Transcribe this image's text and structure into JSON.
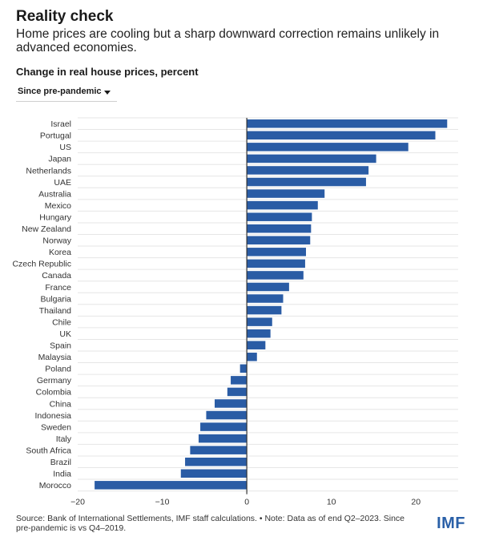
{
  "header": {
    "title": "Reality check",
    "subtitle": "Home prices are cooling but a sharp downward correction remains unlikely in advanced economies."
  },
  "controls": {
    "dropdown_value": "Since pre-pandemic"
  },
  "footer": {
    "source": "Source: Bank of International Settlements, IMF staff calculations. • Note: Data as of end Q2–2023. Since pre-pandemic is vs Q4–2019.",
    "logo": "IMF"
  },
  "colors": {
    "bar": "#2a5ca5",
    "zero_line": "#333333",
    "grid": "#e6e6e6",
    "logo": "#2a60a8"
  },
  "chart_data": {
    "type": "bar",
    "orientation": "horizontal",
    "title": "",
    "xlabel": "",
    "ylabel": "Change in real house prices, percent",
    "xlim": [
      -20,
      25
    ],
    "xticks": [
      -20,
      -10,
      0,
      10,
      20
    ],
    "xtick_labels": [
      "−20",
      "−10",
      "0",
      "10",
      "20"
    ],
    "grid": true,
    "categories": [
      "Israel",
      "Portugal",
      "US",
      "Japan",
      "Netherlands",
      "UAE",
      "Australia",
      "Mexico",
      "Hungary",
      "New Zealand",
      "Norway",
      "Korea",
      "Czech Republic",
      "Canada",
      "France",
      "Bulgaria",
      "Thailand",
      "Chile",
      "UK",
      "Spain",
      "Malaysia",
      "Poland",
      "Germany",
      "Colombia",
      "China",
      "Indonesia",
      "Sweden",
      "Italy",
      "South Africa",
      "Brazil",
      "India",
      "Morocco"
    ],
    "values": [
      23.7,
      22.3,
      19.1,
      15.3,
      14.4,
      14.1,
      9.2,
      8.4,
      7.7,
      7.6,
      7.5,
      7.0,
      6.9,
      6.7,
      5.0,
      4.3,
      4.1,
      3.0,
      2.8,
      2.2,
      1.2,
      -0.8,
      -1.9,
      -2.3,
      -3.8,
      -4.8,
      -5.5,
      -5.7,
      -6.7,
      -7.3,
      -7.8,
      -18.0
    ]
  }
}
